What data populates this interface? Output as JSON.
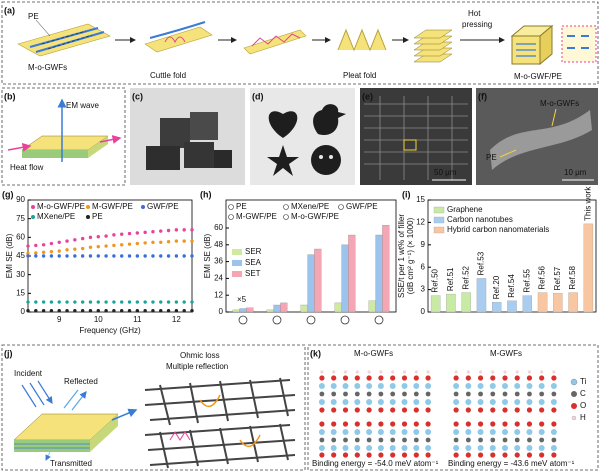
{
  "panel_a": {
    "label": "(a)",
    "pe": "PE",
    "fibers": "M-o-GWFs",
    "step1": "Cuttle fold",
    "step2": "Pleat fold",
    "step3": [
      "Hot",
      "pressing"
    ],
    "product": "M-o-GWF/PE"
  },
  "panel_b": {
    "label": "(b)",
    "wave": "EM wave",
    "heat": "Heat flow"
  },
  "panel_c": {
    "label": "(c)"
  },
  "panel_d": {
    "label": "(d)"
  },
  "panel_e": {
    "label": "(e)",
    "scale": "50 μm"
  },
  "panel_f": {
    "label": "(f)",
    "fibers": "M-o-GWFs",
    "pe": "PE",
    "scale": "10 μm"
  },
  "chart_data": [
    {
      "type": "scatter",
      "panel": "(g)",
      "xlabel": "Frequency (GHz)",
      "ylabel": "EMI SE (dB)",
      "x": [
        8.2,
        8.4,
        8.6,
        8.8,
        9.0,
        9.2,
        9.4,
        9.6,
        9.8,
        10.0,
        10.2,
        10.4,
        10.6,
        10.8,
        11.0,
        11.2,
        11.4,
        11.6,
        11.8,
        12.0,
        12.2,
        12.4
      ],
      "xlim": [
        8.2,
        12.4
      ],
      "xticks": [
        9,
        10,
        11,
        12
      ],
      "ylim": [
        0,
        90
      ],
      "yticks": [
        0,
        15,
        30,
        45,
        60,
        75,
        90
      ],
      "series": [
        {
          "name": "M-o-GWF/PE",
          "color": "#e8429a",
          "values": [
            53,
            53.5,
            54,
            55,
            56,
            57,
            58,
            59,
            60,
            60.5,
            61,
            62,
            62.5,
            63,
            63.5,
            64,
            64.5,
            65,
            65.5,
            66,
            66,
            66
          ]
        },
        {
          "name": "M-GWF/PE",
          "color": "#f0961e",
          "values": [
            47,
            47.5,
            48,
            48.5,
            49,
            50,
            50.5,
            51,
            52,
            52.5,
            53,
            53.5,
            54,
            54.5,
            55,
            55.5,
            56,
            56,
            56.5,
            57,
            57,
            57
          ]
        },
        {
          "name": "GWF/PE",
          "color": "#3a6fd8",
          "values": [
            45,
            45,
            45,
            45,
            45,
            45,
            45,
            45,
            45,
            45,
            45,
            45,
            45,
            45,
            45,
            45,
            45,
            45,
            45,
            45,
            45,
            45
          ]
        },
        {
          "name": "MXene/PE",
          "color": "#1aa59a",
          "values": [
            8,
            8,
            8,
            8,
            8,
            8,
            8,
            8,
            8,
            8,
            8,
            8,
            8,
            8,
            8,
            8,
            8,
            8,
            8,
            8,
            8,
            8
          ]
        },
        {
          "name": "PE",
          "color": "#222222",
          "values": [
            1,
            1,
            1,
            1,
            1,
            1,
            1,
            1,
            1,
            1,
            1,
            1,
            1,
            1,
            1,
            1,
            1,
            1,
            1,
            1,
            1,
            1
          ]
        }
      ]
    },
    {
      "type": "grouped_bar",
      "panel": "(h)",
      "ylabel": "EMI SE (dB)",
      "annotation": "×5",
      "categories": [
        "PE",
        "MXene/PE",
        "GWF/PE",
        "M-GWF/PE",
        "M-o-GWF/PE"
      ],
      "ylim": [
        0,
        80
      ],
      "yticks": [
        0,
        12,
        24,
        36,
        48,
        60
      ],
      "series": [
        {
          "name": "SER",
          "color": "#cfe9a0",
          "values": [
            1.5,
            1.5,
            5,
            6.5,
            8
          ]
        },
        {
          "name": "SEA",
          "color": "#9cc3ee",
          "values": [
            2.5,
            5,
            41,
            48,
            55
          ]
        },
        {
          "name": "SET",
          "color": "#f4a6b4",
          "values": [
            3,
            6.5,
            45,
            55,
            62
          ]
        }
      ]
    },
    {
      "type": "bar",
      "panel": "(i)",
      "ylabel": [
        "SSE/t per 1 wt% of filler",
        "(dB cm² g⁻¹) (× 1000)"
      ],
      "categories": [
        "Ref.50",
        "Ref.51",
        "Ref.52",
        "Ref.53",
        "Ref.20",
        "Ref.54",
        "Ref.55",
        "Ref.56",
        "Ref.57",
        "Ref.58",
        "This work"
      ],
      "ylim": [
        0,
        15
      ],
      "yticks": [
        0,
        3,
        6,
        9,
        12,
        15
      ],
      "series": [
        {
          "name": "Graphene",
          "color": "#c8eaa4",
          "values": [
            2.2,
            2.4,
            2.6,
            null,
            null,
            null,
            null,
            null,
            null,
            null,
            null
          ]
        },
        {
          "name": "Carbon nanotubes",
          "color": "#a9cdf0",
          "values": [
            null,
            null,
            null,
            4.5,
            1.3,
            1.5,
            2.2,
            null,
            null,
            null,
            null
          ]
        },
        {
          "name": "Hybrid carbon nanomaterials",
          "color": "#f9c6a2",
          "values": [
            null,
            null,
            null,
            null,
            null,
            null,
            null,
            2.6,
            2.5,
            2.6,
            11.8
          ]
        }
      ]
    }
  ],
  "panel_j": {
    "label": "(j)",
    "incident": "Incident",
    "reflected": "Reflected",
    "transmitted": "Transmitted",
    "ohmic": "Ohmic loss",
    "multiple": "Multiple reflection"
  },
  "panel_k": {
    "label": "(k)",
    "left": "M-o-GWFs",
    "right": "M-GWFs",
    "legend": [
      "Ti",
      "C",
      "O",
      "H"
    ],
    "energy_left": "Binding energy = -54.0 meV atom⁻¹",
    "energy_right": "Binding energy = -43.6 meV atom⁻¹"
  }
}
